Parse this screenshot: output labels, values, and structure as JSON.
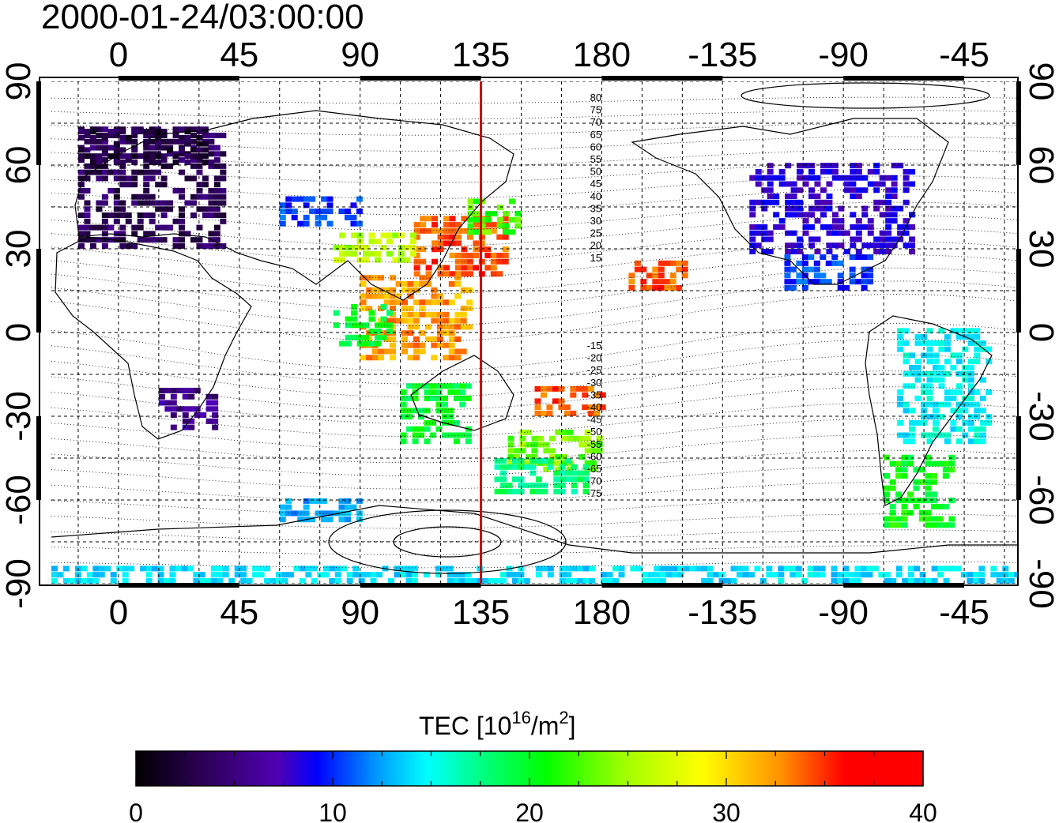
{
  "title": "2000-01-24/03:00:00",
  "colorbar": {
    "label_prefix": "TEC  [10",
    "label_exp1": "16",
    "label_mid": "/m",
    "label_exp2": "2",
    "label_suffix": "]",
    "ticks": [
      "0",
      "10",
      "20",
      "30",
      "40"
    ],
    "range": [
      0,
      40
    ],
    "colormap": [
      "#000000",
      "#2a0050",
      "#5000b4",
      "#0000ff",
      "#00a0ff",
      "#00ffff",
      "#00ff80",
      "#00ff00",
      "#a0ff00",
      "#ffff00",
      "#ff9000",
      "#ff0000"
    ]
  },
  "map": {
    "lon_ticks": [
      "0",
      "45",
      "90",
      "135",
      "180",
      "-135",
      "-90",
      "-45"
    ],
    "lat_ticks": [
      "90",
      "60",
      "30",
      "0",
      "-30",
      "-60",
      "-90"
    ],
    "meridian_line_lon": 135,
    "meridian_line_color": "#cc0000",
    "dip_labels_north": [
      "80",
      "75",
      "70",
      "65",
      "60",
      "55",
      "50",
      "45",
      "40",
      "35",
      "30",
      "25",
      "20",
      "15"
    ],
    "dip_labels_south": [
      "-15",
      "-20",
      "-25",
      "-30",
      "-35",
      "-40",
      "-45",
      "-50",
      "-55",
      "-60",
      "-65",
      "-70",
      "-75"
    ]
  },
  "chart_data": {
    "type": "heatmap",
    "title": "2000-01-24/03:00:00",
    "xlabel": "",
    "ylabel": "",
    "xlim": [
      -25,
      335
    ],
    "ylim": [
      -90,
      90
    ],
    "colorbar_label": "TEC [10^16/m^2]",
    "colorbar_range": [
      0,
      40
    ],
    "regions": [
      {
        "lon": [
          -15,
          40
        ],
        "lat": [
          30,
          72
        ],
        "tec": 4
      },
      {
        "lon": [
          -15,
          35
        ],
        "lat": [
          60,
          72
        ],
        "tec": 3
      },
      {
        "lon": [
          60,
          90
        ],
        "lat": [
          38,
          48
        ],
        "tec": 12
      },
      {
        "lon": [
          110,
          145
        ],
        "lat": [
          20,
          40
        ],
        "tec": 38
      },
      {
        "lon": [
          130,
          148
        ],
        "lat": [
          35,
          48
        ],
        "tec": 27
      },
      {
        "lon": [
          80,
          110
        ],
        "lat": [
          25,
          35
        ],
        "tec": 30
      },
      {
        "lon": [
          90,
          130
        ],
        "lat": [
          -10,
          20
        ],
        "tec": 36
      },
      {
        "lon": [
          105,
          130
        ],
        "lat": [
          -40,
          -20
        ],
        "tec": 24
      },
      {
        "lon": [
          145,
          180
        ],
        "lat": [
          -50,
          -35
        ],
        "tec": 28
      },
      {
        "lon": [
          155,
          180
        ],
        "lat": [
          -30,
          -20
        ],
        "tec": 38
      },
      {
        "lon": [
          190,
          210
        ],
        "lat": [
          15,
          25
        ],
        "tec": 38
      },
      {
        "lon": [
          235,
          295
        ],
        "lat": [
          28,
          60
        ],
        "tec": 9
      },
      {
        "lon": [
          248,
          280
        ],
        "lat": [
          15,
          28
        ],
        "tec": 12
      },
      {
        "lon": [
          290,
          325
        ],
        "lat": [
          -40,
          0
        ],
        "tec": 18
      },
      {
        "lon": [
          285,
          310
        ],
        "lat": [
          -70,
          -45
        ],
        "tec": 25
      },
      {
        "lon": [
          15,
          35
        ],
        "lat": [
          -35,
          -20
        ],
        "tec": 6
      },
      {
        "lon": [
          -25,
          335
        ],
        "lat": [
          -90,
          -85
        ],
        "tec": 17
      },
      {
        "lon": [
          80,
          100
        ],
        "lat": [
          -5,
          10
        ],
        "tec": 24
      },
      {
        "lon": [
          140,
          175
        ],
        "lat": [
          -58,
          -45
        ],
        "tec": 22
      },
      {
        "lon": [
          60,
          90
        ],
        "lat": [
          -68,
          -60
        ],
        "tec": 15
      }
    ]
  }
}
